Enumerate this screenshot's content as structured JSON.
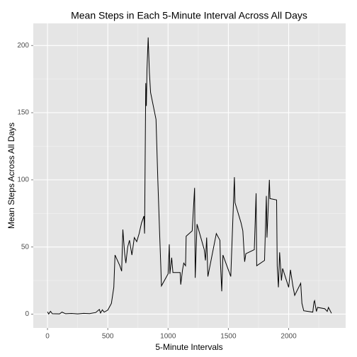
{
  "chart_data": {
    "type": "line",
    "title": "Mean Steps in Each 5-Minute Interval Across All Days",
    "x_label": "5-Minute Intervals",
    "y_label": "Mean Steps Across All Days",
    "x": [
      0,
      10,
      25,
      40,
      100,
      120,
      150,
      200,
      250,
      300,
      350,
      400,
      430,
      440,
      455,
      470,
      500,
      530,
      550,
      560,
      600,
      615,
      625,
      640,
      650,
      665,
      680,
      700,
      720,
      740,
      760,
      780,
      800,
      805,
      815,
      820,
      825,
      835,
      845,
      855,
      900,
      915,
      930,
      940,
      945,
      1000,
      1010,
      1015,
      1030,
      1040,
      1100,
      1105,
      1120,
      1130,
      1145,
      1150,
      1200,
      1220,
      1225,
      1240,
      1300,
      1310,
      1320,
      1330,
      1400,
      1430,
      1435,
      1445,
      1455,
      1520,
      1535,
      1550,
      1555,
      1605,
      1620,
      1635,
      1645,
      1715,
      1730,
      1735,
      1800,
      1815,
      1820,
      1840,
      1845,
      1900,
      1905,
      1915,
      1925,
      1940,
      1950,
      2000,
      2015,
      2035,
      2050,
      2100,
      2110,
      2125,
      2200,
      2210,
      2215,
      2230,
      2240,
      2300,
      2320,
      2330,
      2355
    ],
    "series": [
      {
        "name": "steps",
        "color": "#000000",
        "values": [
          1.7,
          0.1,
          2.1,
          0.3,
          0.2,
          1.5,
          0.3,
          0.5,
          0.2,
          0.6,
          0.4,
          1.2,
          3.5,
          0.8,
          3.2,
          1.5,
          3.0,
          8.0,
          20.0,
          44.0,
          36.0,
          32.0,
          63.0,
          45.0,
          38.0,
          50.0,
          55.0,
          44.0,
          57.0,
          54.0,
          60.0,
          68.0,
          73.0,
          60.0,
          172.0,
          155.0,
          182.0,
          206.0,
          180.0,
          165.0,
          145.0,
          100.0,
          60.0,
          35.0,
          21.0,
          30.0,
          52.0,
          30.0,
          42.0,
          31.0,
          31.0,
          22.0,
          33.0,
          38.0,
          36.0,
          58.0,
          62.0,
          94.0,
          27.0,
          67.0,
          48.0,
          40.0,
          57.0,
          28.0,
          60.0,
          55.0,
          37.0,
          17.0,
          44.0,
          28.0,
          65.0,
          102.0,
          83.0,
          68.0,
          62.0,
          39.0,
          45.0,
          48.0,
          90.0,
          36.0,
          40.0,
          88.0,
          57.0,
          100.0,
          86.0,
          85.0,
          36.0,
          20.0,
          46.0,
          25.0,
          34.0,
          20.0,
          33.0,
          21.0,
          14.0,
          23.0,
          8.0,
          2.5,
          1.5,
          9.0,
          10.0,
          2.0,
          5.0,
          4.0,
          2.0,
          5.0,
          0.6
        ]
      }
    ],
    "xlim": [
      -117.75,
      2472.75
    ],
    "xticks": [
      0,
      500,
      1000,
      1500,
      2000
    ],
    "x_minor_ticks": [
      250,
      750,
      1250,
      1750,
      2250
    ],
    "ylim": [
      -10.3,
      216.5
    ],
    "yticks": [
      0,
      50,
      100,
      150,
      200
    ],
    "y_minor_ticks": [
      25,
      75,
      125,
      175
    ],
    "grid": true
  }
}
